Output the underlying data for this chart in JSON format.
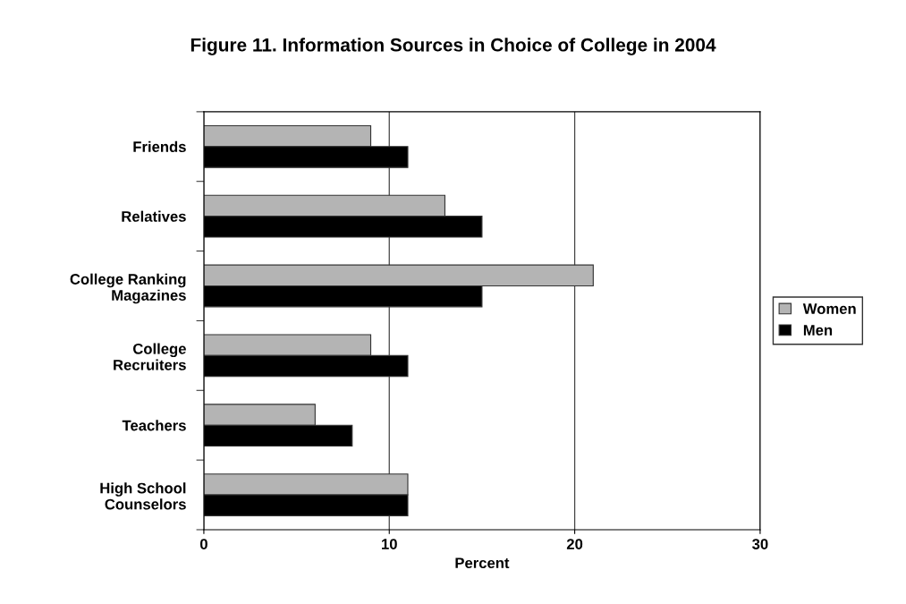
{
  "chart_data": {
    "type": "bar",
    "orientation": "horizontal",
    "title": "Figure 11. Information Sources in Choice of College in 2004",
    "xlabel": "Percent",
    "categories": [
      "Friends",
      "Relatives",
      "College Ranking\nMagazines",
      "College\nRecruiters",
      "Teachers",
      "High School\nCounselors"
    ],
    "series": [
      {
        "name": "Women",
        "color": "#b4b4b4",
        "values": [
          9,
          13,
          21,
          9,
          6,
          11
        ]
      },
      {
        "name": "Men",
        "color": "#000000",
        "values": [
          11,
          15,
          15,
          11,
          8,
          11
        ]
      }
    ],
    "xlim": [
      0,
      30
    ],
    "xticks": [
      0,
      10,
      20,
      30
    ],
    "grid": "x",
    "legend": "right"
  }
}
